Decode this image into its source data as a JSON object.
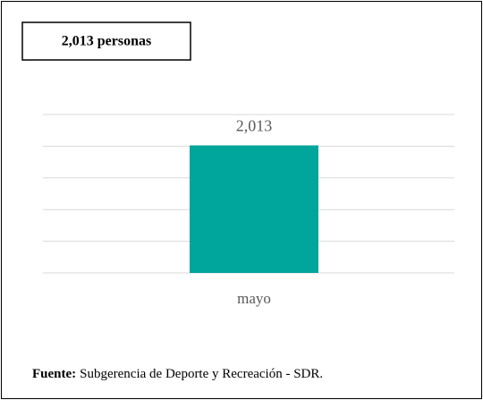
{
  "chart_data": {
    "type": "bar",
    "title": "2,013 personas",
    "categories": [
      "mayo"
    ],
    "values": [
      2013
    ],
    "value_labels": [
      "2,013"
    ],
    "color": "#00a59b",
    "ylim": [
      0,
      2500
    ],
    "yticks": [
      0,
      500,
      1000,
      1500,
      2000,
      2500
    ],
    "grid": true,
    "source_label": "Fuente:",
    "source": "Subgerencia de Deporte y Recreación - SDR."
  }
}
